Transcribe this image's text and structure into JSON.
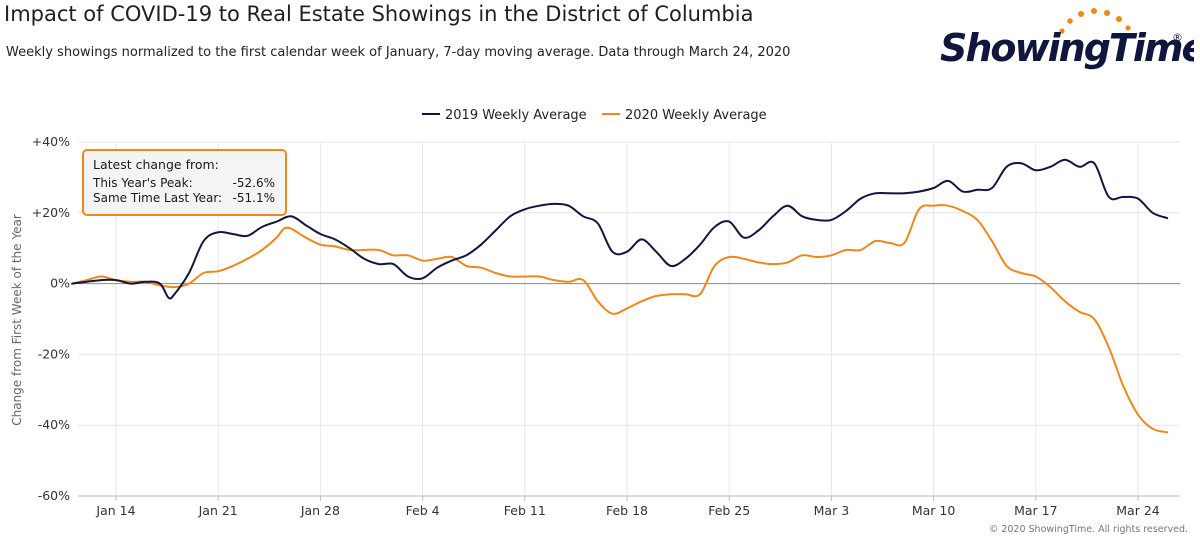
{
  "chart_data": {
    "type": "line",
    "title": "Impact of COVID-19 to Real Estate Showings in the District of Columbia",
    "subtitle": "Weekly showings normalized to the first calendar week of January, 7-day moving average. Data through March 24, 2020",
    "xlabel": "",
    "ylabel": "Change from First Week of the Year",
    "x_ticks": [
      "Jan 14",
      "Jan 21",
      "Jan 28",
      "Feb 4",
      "Feb 11",
      "Feb 18",
      "Feb 25",
      "Mar 3",
      "Mar 10",
      "Mar 17",
      "Mar 24"
    ],
    "x_start_day_offset": -3,
    "y_ticks": [
      40,
      20,
      0,
      -20,
      -40,
      -60
    ],
    "y_tick_labels": [
      "+40%",
      "+20%",
      "0%",
      "-20%",
      "-40%",
      "-60%"
    ],
    "ylim": [
      -60,
      40
    ],
    "grid": true,
    "legend_position": "top-center",
    "series": [
      {
        "name": "2019 Weekly Average",
        "color": "#10163D",
        "points": [
          [
            -3,
            0
          ],
          [
            -1,
            1
          ],
          [
            0,
            1
          ],
          [
            1,
            0
          ],
          [
            2,
            0.5
          ],
          [
            3,
            0
          ],
          [
            3.6,
            -4
          ],
          [
            4,
            -3
          ],
          [
            5,
            3
          ],
          [
            6,
            12
          ],
          [
            7,
            14.5
          ],
          [
            8,
            14
          ],
          [
            9,
            13.5
          ],
          [
            10,
            16
          ],
          [
            11,
            17.5
          ],
          [
            12,
            19
          ],
          [
            13,
            16.5
          ],
          [
            14,
            14
          ],
          [
            15,
            12.5
          ],
          [
            16,
            10
          ],
          [
            17,
            7
          ],
          [
            18,
            5.5
          ],
          [
            19,
            5.5
          ],
          [
            20,
            2
          ],
          [
            21,
            1.5
          ],
          [
            22,
            4.5
          ],
          [
            23,
            6.5
          ],
          [
            24,
            8
          ],
          [
            25,
            11
          ],
          [
            26,
            15
          ],
          [
            27,
            19
          ],
          [
            28,
            21
          ],
          [
            29,
            22
          ],
          [
            30,
            22.5
          ],
          [
            31,
            22
          ],
          [
            32,
            19
          ],
          [
            33,
            17
          ],
          [
            34,
            9
          ],
          [
            35,
            9
          ],
          [
            36,
            12.5
          ],
          [
            37,
            9
          ],
          [
            38,
            5
          ],
          [
            39,
            7
          ],
          [
            40,
            11
          ],
          [
            41,
            16
          ],
          [
            42,
            17.5
          ],
          [
            43,
            13
          ],
          [
            44,
            15
          ],
          [
            45,
            19
          ],
          [
            46,
            22
          ],
          [
            47,
            19
          ],
          [
            48,
            18
          ],
          [
            49,
            18
          ],
          [
            50,
            20.5
          ],
          [
            51,
            24
          ],
          [
            52,
            25.5
          ],
          [
            53,
            25.5
          ],
          [
            54,
            25.5
          ],
          [
            55,
            26
          ],
          [
            56,
            27
          ],
          [
            57,
            29
          ],
          [
            58,
            26
          ],
          [
            59,
            26.5
          ],
          [
            60,
            27
          ],
          [
            61,
            33
          ],
          [
            62,
            34
          ],
          [
            63,
            32
          ],
          [
            64,
            33
          ],
          [
            65,
            35
          ],
          [
            66,
            33
          ],
          [
            67,
            34
          ],
          [
            68,
            24.5
          ],
          [
            69,
            24.5
          ],
          [
            70,
            24
          ],
          [
            71,
            20
          ],
          [
            72,
            18.5
          ]
        ]
      },
      {
        "name": "2020 Weekly Average",
        "color": "#F0871A",
        "points": [
          [
            -3,
            0
          ],
          [
            -2,
            1
          ],
          [
            -1,
            2
          ],
          [
            0,
            1
          ],
          [
            1,
            0.5
          ],
          [
            2,
            0.5
          ],
          [
            3,
            -0.5
          ],
          [
            4,
            -1
          ],
          [
            5,
            0
          ],
          [
            6,
            3
          ],
          [
            7,
            3.5
          ],
          [
            8,
            5
          ],
          [
            9,
            7
          ],
          [
            10,
            9.5
          ],
          [
            11,
            13
          ],
          [
            11.5,
            15.5
          ],
          [
            12,
            15.5
          ],
          [
            13,
            13
          ],
          [
            14,
            11
          ],
          [
            15,
            10.5
          ],
          [
            16,
            9.5
          ],
          [
            17,
            9.5
          ],
          [
            18,
            9.5
          ],
          [
            19,
            8
          ],
          [
            20,
            8
          ],
          [
            21,
            6.5
          ],
          [
            22,
            7
          ],
          [
            23,
            7.5
          ],
          [
            24,
            5
          ],
          [
            25,
            4.5
          ],
          [
            26,
            3
          ],
          [
            27,
            2
          ],
          [
            28,
            2
          ],
          [
            29,
            2
          ],
          [
            30,
            1
          ],
          [
            31,
            0.5
          ],
          [
            32,
            1
          ],
          [
            33,
            -5
          ],
          [
            34,
            -8.5
          ],
          [
            35,
            -7
          ],
          [
            36,
            -5
          ],
          [
            37,
            -3.5
          ],
          [
            38,
            -3
          ],
          [
            39,
            -3
          ],
          [
            40,
            -3
          ],
          [
            41,
            5
          ],
          [
            42,
            7.5
          ],
          [
            43,
            7
          ],
          [
            44,
            6
          ],
          [
            45,
            5.5
          ],
          [
            46,
            6
          ],
          [
            47,
            8
          ],
          [
            48,
            7.5
          ],
          [
            49,
            8
          ],
          [
            50,
            9.5
          ],
          [
            51,
            9.5
          ],
          [
            52,
            12
          ],
          [
            53,
            11.5
          ],
          [
            54,
            11.5
          ],
          [
            55,
            21
          ],
          [
            56,
            22
          ],
          [
            57,
            22
          ],
          [
            58,
            20.5
          ],
          [
            59,
            18
          ],
          [
            60,
            12
          ],
          [
            61,
            5
          ],
          [
            62,
            3
          ],
          [
            63,
            2
          ],
          [
            64,
            -1
          ],
          [
            65,
            -5
          ],
          [
            66,
            -8
          ],
          [
            67,
            -10
          ],
          [
            68,
            -18
          ],
          [
            69,
            -29
          ],
          [
            70,
            -37
          ],
          [
            71,
            -41
          ],
          [
            72,
            -42
          ]
        ]
      }
    ]
  },
  "callout": {
    "heading": "Latest change from:",
    "rows": [
      {
        "label": "This Year's Peak:",
        "value": "-52.6%"
      },
      {
        "label": "Same Time Last Year:",
        "value": "-51.1%"
      }
    ]
  },
  "logo": {
    "text": "ShowingTime",
    "registered": "®",
    "color_text": "#10163D",
    "color_dots": "#F0871A"
  },
  "copyright": "© 2020 ShowingTime. All rights reserved."
}
